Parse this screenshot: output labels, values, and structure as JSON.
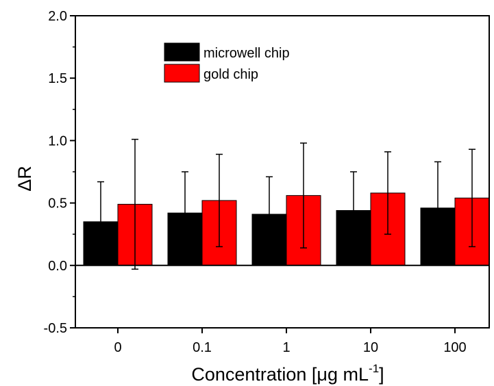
{
  "chart_data": {
    "type": "bar",
    "title": "",
    "xlabel": "Concentration [μg mL",
    "xlabel_sup": "-1",
    "xlabel_close": "]",
    "ylabel": "ΔR",
    "ylim": [
      -0.5,
      2.0
    ],
    "yticks": [
      "2.0",
      "1.5",
      "1.0",
      "0.5",
      "0.0",
      "-0.5"
    ],
    "categories": [
      "0",
      "0.1",
      "1",
      "10",
      "100"
    ],
    "series": [
      {
        "name": "microwell chip",
        "color": "#000000",
        "values": [
          0.35,
          0.42,
          0.41,
          0.44,
          0.46
        ],
        "errors": [
          0.32,
          0.33,
          0.3,
          0.31,
          0.37
        ]
      },
      {
        "name": "gold chip",
        "color": "#ff0000",
        "values": [
          0.49,
          0.52,
          0.56,
          0.58,
          0.54
        ],
        "errors": [
          0.52,
          0.37,
          0.42,
          0.33,
          0.39
        ]
      }
    ],
    "legend_position": "top-left",
    "grid": false,
    "zero_line": true
  }
}
